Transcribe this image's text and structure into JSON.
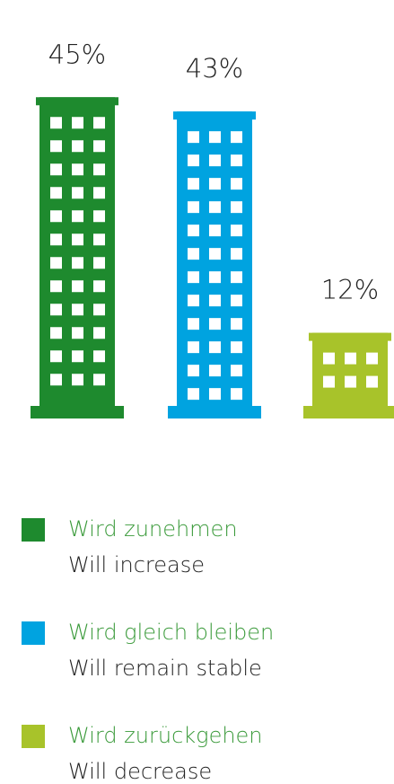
{
  "chart_data": {
    "type": "pictorial-bar",
    "series": [
      {
        "name": "Wird zunehmen",
        "translation": "Will increase",
        "color": "#1e8a2e",
        "values": [
          45
        ],
        "value_labels": [
          "45%"
        ]
      },
      {
        "name": "Wird gleich bleiben",
        "translation": "Will remain stable",
        "color": "#00a3e0",
        "values": [
          43
        ],
        "value_labels": [
          "43%"
        ]
      },
      {
        "name": "Wird zurückgehen",
        "translation": "Will decrease",
        "color": "#a8c32a",
        "values": [
          12
        ],
        "value_labels": [
          "12%"
        ]
      }
    ]
  }
}
